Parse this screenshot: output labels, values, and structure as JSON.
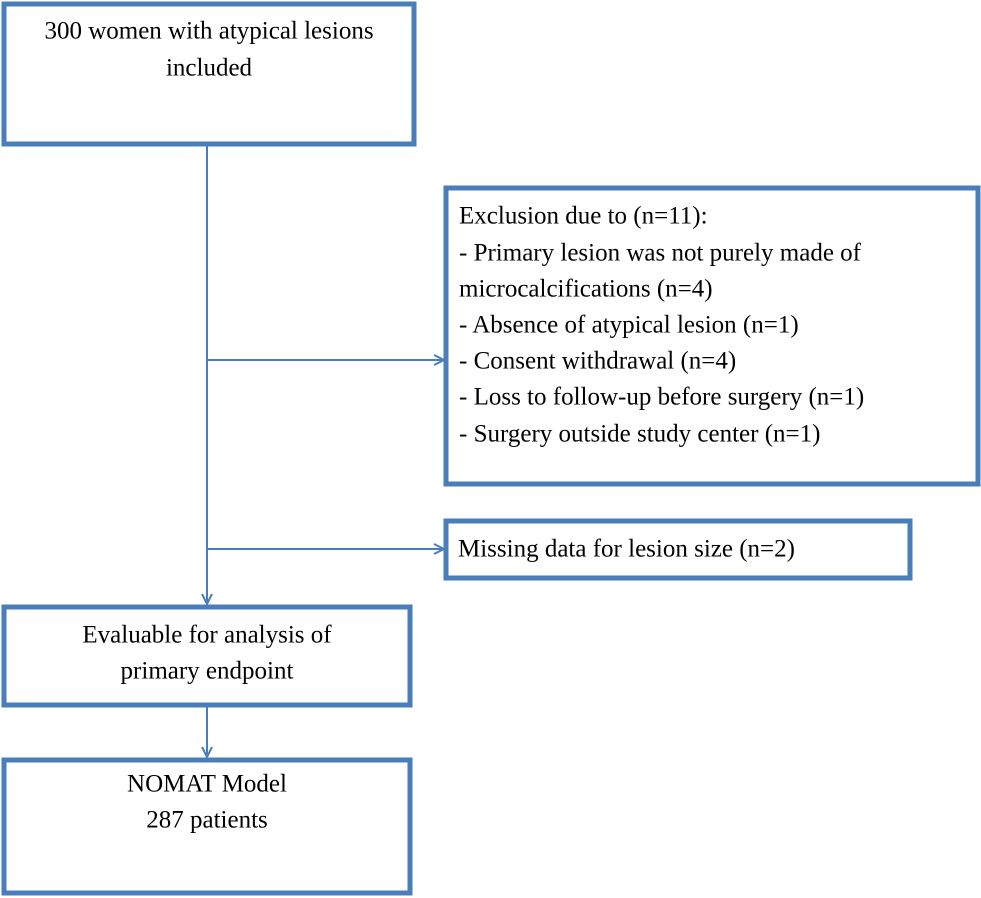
{
  "nodes": [
    {
      "lines": [
        "300 women with atypical lesions",
        "included"
      ]
    },
    {
      "lines": [
        "Exclusion due to (n=11):",
        "- Primary lesion was not purely made of",
        "microcalcifications (n=4)",
        "- Absence of atypical lesion (n=1)",
        "- Consent withdrawal (n=4)",
        "- Loss to follow-up before surgery (n=1)",
        "- Surgery outside study center (n=1)"
      ]
    },
    {
      "lines": [
        "Missing data for lesion size (n=2)"
      ]
    },
    {
      "lines": [
        "Evaluable for analysis of",
        "primary endpoint"
      ]
    },
    {
      "lines": [
        "NOMAT Model",
        "287 patients"
      ]
    }
  ]
}
